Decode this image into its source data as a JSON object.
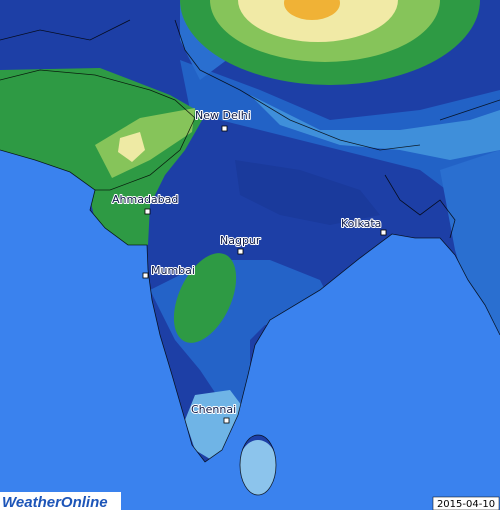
{
  "cities": [
    {
      "label": "New Delhi"
    },
    {
      "label": "Ahmadabad"
    },
    {
      "label": "Nagpur"
    },
    {
      "label": "Kolkata"
    },
    {
      "label": "Mumbai"
    },
    {
      "label": "Chennai"
    }
  ],
  "logo": "WeatherOnline",
  "date": "2015-04-10"
}
